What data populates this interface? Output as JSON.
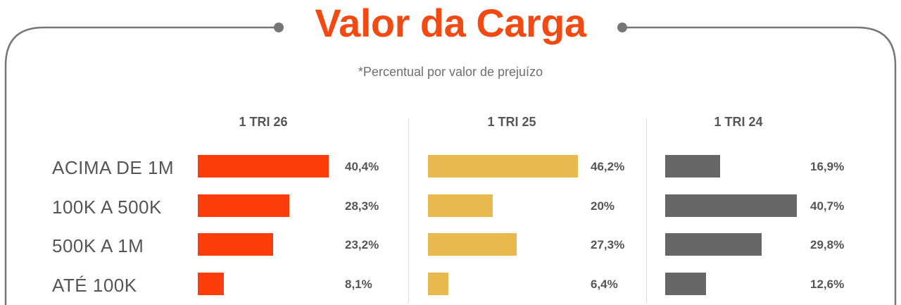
{
  "title": "Valor da Carga",
  "subtitle": "*Percentual por valor de prejuízo",
  "colors": {
    "title": "#f24a12",
    "frame": "#777777",
    "text": "#555555"
  },
  "chart_data": {
    "type": "bar",
    "orientation": "horizontal",
    "categories": [
      "ACIMA DE 1M",
      "100K A 500K",
      "500K A 1M",
      "ATÉ 100K"
    ],
    "panels": [
      {
        "name": "1 TRI 26",
        "color": "#fb3d0b",
        "values": [
          40.4,
          28.3,
          23.2,
          8.1
        ],
        "labels": [
          "40,4%",
          "28,3%",
          "23,2%",
          "8,1%"
        ]
      },
      {
        "name": "1 TRI 25",
        "color": "#e8b94c",
        "values": [
          46.2,
          20,
          27.3,
          6.4
        ],
        "labels": [
          "46,2%",
          "20%",
          "27,3%",
          "6,4%"
        ]
      },
      {
        "name": "1 TRI 24",
        "color": "#666666",
        "values": [
          16.9,
          40.7,
          29.8,
          12.6
        ],
        "labels": [
          "16,9%",
          "40,7%",
          "29,8%",
          "12,6%"
        ]
      }
    ],
    "unit": "%"
  }
}
